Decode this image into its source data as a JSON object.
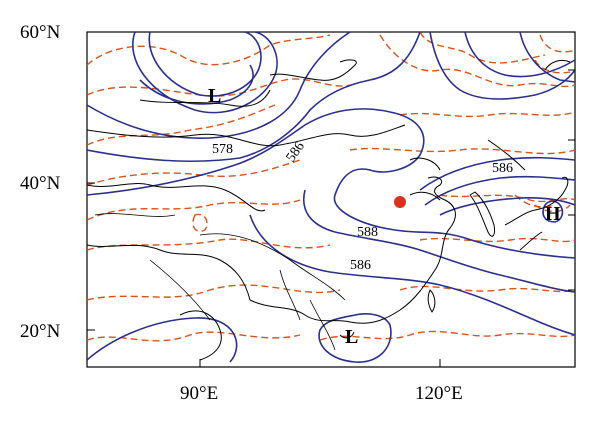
{
  "map": {
    "lat_labels": [
      "60°N",
      "40°N",
      "20°N"
    ],
    "lon_labels": [
      "90°E",
      "120°E"
    ],
    "contour_labels": [
      "578",
      "586",
      "586",
      "588",
      "586"
    ],
    "pressure_systems": [
      "L",
      "L",
      "H"
    ],
    "station_marker": {
      "color": "#d9321f"
    },
    "colors": {
      "solid_contour": "#2b2f8f",
      "dashed_contour": "#d9541a",
      "coastline": "#000000"
    }
  }
}
